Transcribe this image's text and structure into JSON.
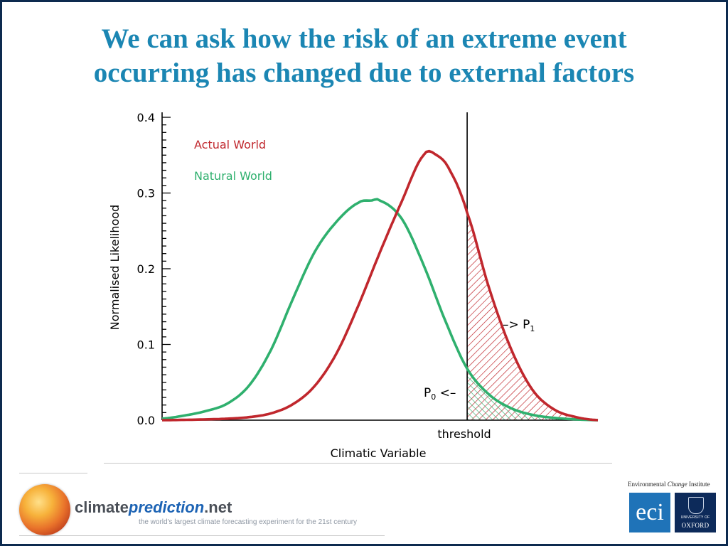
{
  "slide": {
    "title_line1": "We can ask how the risk of an extreme event",
    "title_line2": "occurring has changed due to external factors",
    "colors": {
      "title": "#1b86b3",
      "frame": "#0d2a4f",
      "actual": "#c0272d",
      "natural": "#2fb06e"
    }
  },
  "chart_data": {
    "type": "line",
    "title": "",
    "xlabel": "Climatic Variable",
    "ylabel": "Normalised Likelihood",
    "ylim": [
      0,
      0.4
    ],
    "yticks": [
      0.0,
      0.1,
      0.2,
      0.3,
      0.4
    ],
    "ytick_labels": [
      "0.0",
      "0.1",
      "0.2",
      "0.3",
      "0.4"
    ],
    "x_axis_range": [
      0,
      1
    ],
    "series": [
      {
        "name": "Actual World",
        "color": "#c0272d",
        "x": [
          0.0,
          0.05,
          0.1,
          0.15,
          0.2,
          0.25,
          0.3,
          0.35,
          0.4,
          0.45,
          0.5,
          0.55,
          0.6,
          0.63,
          0.66,
          0.7,
          0.75,
          0.8,
          0.85,
          0.9,
          0.95,
          1.0
        ],
        "y": [
          0.0,
          0.0004,
          0.001,
          0.002,
          0.004,
          0.009,
          0.021,
          0.045,
          0.088,
          0.151,
          0.222,
          0.289,
          0.35,
          0.35,
          0.33,
          0.274,
          0.175,
          0.095,
          0.04,
          0.014,
          0.004,
          0.0
        ]
      },
      {
        "name": "Natural World",
        "color": "#2fb06e",
        "x": [
          0.0,
          0.05,
          0.1,
          0.15,
          0.2,
          0.25,
          0.3,
          0.35,
          0.4,
          0.45,
          0.48,
          0.5,
          0.55,
          0.6,
          0.65,
          0.7,
          0.75,
          0.8,
          0.85,
          0.9,
          0.95,
          1.0
        ],
        "y": [
          0.002,
          0.006,
          0.012,
          0.022,
          0.046,
          0.093,
          0.16,
          0.222,
          0.262,
          0.287,
          0.29,
          0.29,
          0.266,
          0.205,
          0.131,
          0.068,
          0.034,
          0.016,
          0.007,
          0.003,
          0.001,
          0.0
        ]
      }
    ],
    "threshold": {
      "x": 0.7,
      "label": "threshold"
    },
    "annotations": {
      "p1_arrow": "–> ",
      "p1_main": "P",
      "p1_sub": "1",
      "p0_main": "P",
      "p0_sub": "0",
      "p0_arrow": " <–"
    },
    "legend_placement": "top-left",
    "grid": false
  },
  "footer": {
    "cpn_name_a": "climate",
    "cpn_name_b": "prediction",
    "cpn_name_c": ".net",
    "cpn_tagline": "the world's largest climate forecasting experiment for the 21st century",
    "eci_label_a": "Environmental ",
    "eci_label_b": "Change",
    "eci_label_c": " Institute",
    "eci_logo": "eci",
    "oxford_small": "UNIVERSITY OF",
    "oxford_name": "OXFORD"
  }
}
